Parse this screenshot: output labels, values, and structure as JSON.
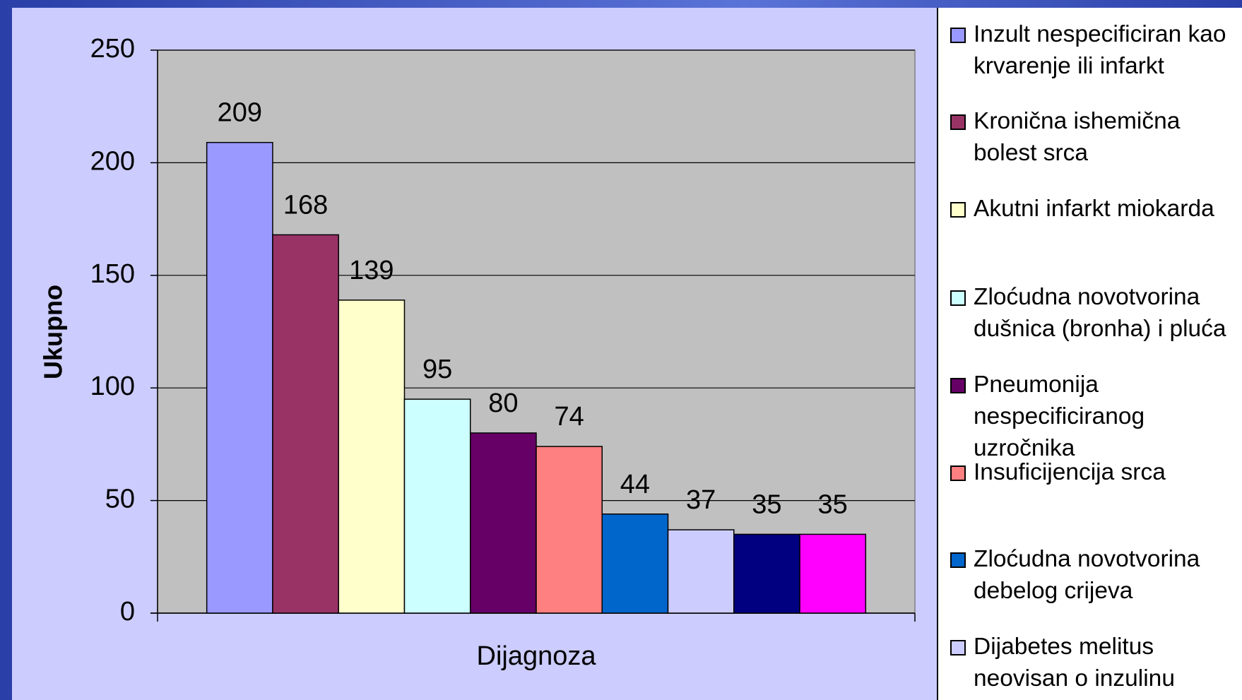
{
  "chart_data": {
    "type": "bar",
    "y_label": "Ukupno",
    "x_label": "Dijagnoza",
    "ylim": [
      0,
      250
    ],
    "yticks": [
      0,
      50,
      100,
      150,
      200,
      250
    ],
    "grid": true,
    "series": [
      {
        "name": "Inzult nespecificiran kao krvarenje ili infarkt",
        "color": "#9999ff",
        "values": [
          209
        ]
      },
      {
        "name": "Kronična ishemična bolest srca",
        "color": "#993366",
        "values": [
          168
        ]
      },
      {
        "name": "Akutni infarkt miokarda",
        "color": "#ffffcc",
        "values": [
          139
        ]
      },
      {
        "name": "Zloćudna novotvorina dušnica (bronha) i pluća",
        "color": "#ccffff",
        "values": [
          95
        ]
      },
      {
        "name": "Pneumonija nespecificiranog uzročnika",
        "color": "#660066",
        "values": [
          80
        ]
      },
      {
        "name": "Insuficijencija srca",
        "color": "#ff8080",
        "values": [
          74
        ]
      },
      {
        "name": "Zloćudna novotvorina debelog crijeva",
        "color": "#0066cc",
        "values": [
          44
        ]
      },
      {
        "name": "Dijabetes melitus neovisan o inzulinu",
        "color": "#ccccff",
        "values": [
          37
        ]
      },
      {
        "color": "#000080",
        "values": [
          35
        ]
      },
      {
        "color": "#ff00ff",
        "values": [
          35
        ]
      }
    ]
  }
}
